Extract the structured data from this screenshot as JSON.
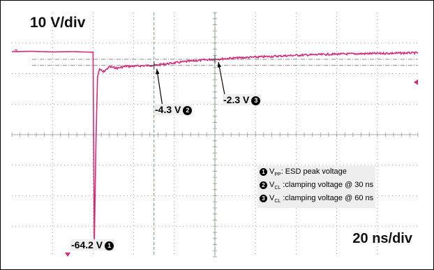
{
  "volts_per_div": "10 V/div",
  "time_per_div": "20 ns/div",
  "annotations": {
    "peak": {
      "value": "-64.2 V",
      "marker": "1"
    },
    "clamp30": {
      "value": "-4.3 V",
      "marker": "2"
    },
    "clamp60": {
      "value": "-2.3 V",
      "marker": "3"
    }
  },
  "legend": [
    {
      "marker": "1",
      "symbol": "V",
      "sub": "PP",
      "text": ": ESD peak voltage"
    },
    {
      "marker": "2",
      "symbol": "V",
      "sub": "CL",
      "text": " :clamping voltage @ 30 ns"
    },
    {
      "marker": "3",
      "symbol": "V",
      "sub": "CL",
      "text": " :clamping voltage @ 60 ns"
    }
  ],
  "colors": {
    "trace": "#d62a7a",
    "grid": "#a8a8a8",
    "marker_line": "#666666"
  },
  "chart_data": {
    "type": "line",
    "x_unit": "ns",
    "y_unit": "V",
    "x_range": [
      -40,
      160
    ],
    "y_range": [
      -67,
      13
    ],
    "series": [
      {
        "values": [
          [
            -40,
            0.2
          ],
          [
            -30,
            0.3
          ],
          [
            -20,
            0.1
          ],
          [
            -10,
            0.2
          ],
          [
            0,
            0.0
          ],
          [
            0.6,
            -64.2
          ],
          [
            1.4,
            -30
          ],
          [
            2.2,
            -8
          ],
          [
            3.2,
            -5.5
          ],
          [
            5,
            -6.5
          ],
          [
            8,
            -4.8
          ],
          [
            12,
            -5.2
          ],
          [
            16,
            -4.6
          ],
          [
            20,
            -4.6
          ],
          [
            25,
            -4.4
          ],
          [
            30,
            -4.3
          ],
          [
            35,
            -3.9
          ],
          [
            40,
            -3.5
          ],
          [
            45,
            -3.1
          ],
          [
            50,
            -2.8
          ],
          [
            55,
            -2.5
          ],
          [
            60,
            -2.3
          ],
          [
            70,
            -1.9
          ],
          [
            80,
            -1.6
          ],
          [
            90,
            -1.3
          ],
          [
            100,
            -1.0
          ],
          [
            110,
            -0.8
          ],
          [
            120,
            -0.6
          ],
          [
            130,
            -0.5
          ],
          [
            140,
            -0.4
          ],
          [
            150,
            -0.3
          ],
          [
            160,
            -0.2
          ]
        ]
      }
    ],
    "cursors": [
      {
        "x": 30,
        "y": -4.3
      },
      {
        "x": 60,
        "y": -2.3
      }
    ]
  }
}
